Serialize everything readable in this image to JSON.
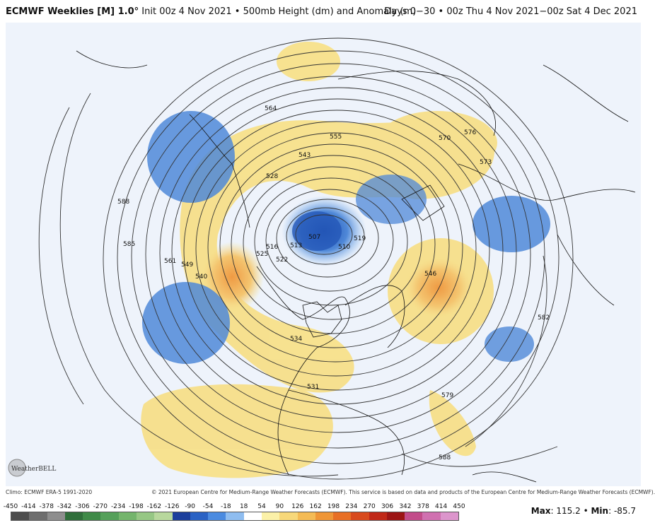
{
  "header": {
    "title_bold": "ECMWF Weeklies [M] 1.0°",
    "title_rest": " Init 00z 4 Nov 2021 • 500mb Height (dm) and Anomaly (m)",
    "valid": "Days 0−30 • 00z Thu 4 Nov 2021−00z Sat 4 Dec 2021"
  },
  "contour_labels": [
    "564",
    "555",
    "543",
    "528",
    "588",
    "585",
    "561",
    "549",
    "540",
    "516",
    "525",
    "522",
    "513",
    "507",
    "510",
    "519",
    "534",
    "531",
    "546",
    "570",
    "576",
    "573",
    "582",
    "579",
    "588"
  ],
  "footer": {
    "climo": "Climo: ECMWF ERA-5 1991-2020",
    "copyright": "© 2021 European Centre for Medium-Range Weather Forecasts (ECMWF). This service is based on data and products of the European Centre for Medium-Range Weather Forecasts (ECMWF)."
  },
  "logo": {
    "text": "WeatherBELL"
  },
  "colorbar": {
    "ticks": [
      "-450",
      "-414",
      "-378",
      "-342",
      "-306",
      "-270",
      "-234",
      "-198",
      "-162",
      "-126",
      "-90",
      "-54",
      "-18",
      "18",
      "54",
      "90",
      "126",
      "162",
      "198",
      "234",
      "270",
      "306",
      "342",
      "378",
      "414",
      "450"
    ],
    "colors": [
      "#4d4d4d",
      "#6e6e6e",
      "#8e8e8e",
      "#2f6e3a",
      "#3f8a48",
      "#55a05a",
      "#74b56c",
      "#96c784",
      "#b8d89d",
      "#1c3f9c",
      "#2a62c4",
      "#4b8be0",
      "#8fbdf0",
      "#ffffff",
      "#fbf1a8",
      "#f7d87a",
      "#f4bb55",
      "#ef9637",
      "#e86f25",
      "#d84a1d",
      "#c02818",
      "#9c1515",
      "#c24c8a",
      "#d070b0",
      "#dc95cc"
    ]
  },
  "stats": {
    "max_label": "Max",
    "max_value": "115.2",
    "min_label": "Min",
    "min_value": "-85.7"
  },
  "colors": {
    "ocean": "#eef3fb",
    "positive_anomaly": "#f7e08a",
    "strong_positive": "#f2a24a",
    "negative_anomaly": "#4f88d8",
    "strong_negative": "#2457b8"
  }
}
